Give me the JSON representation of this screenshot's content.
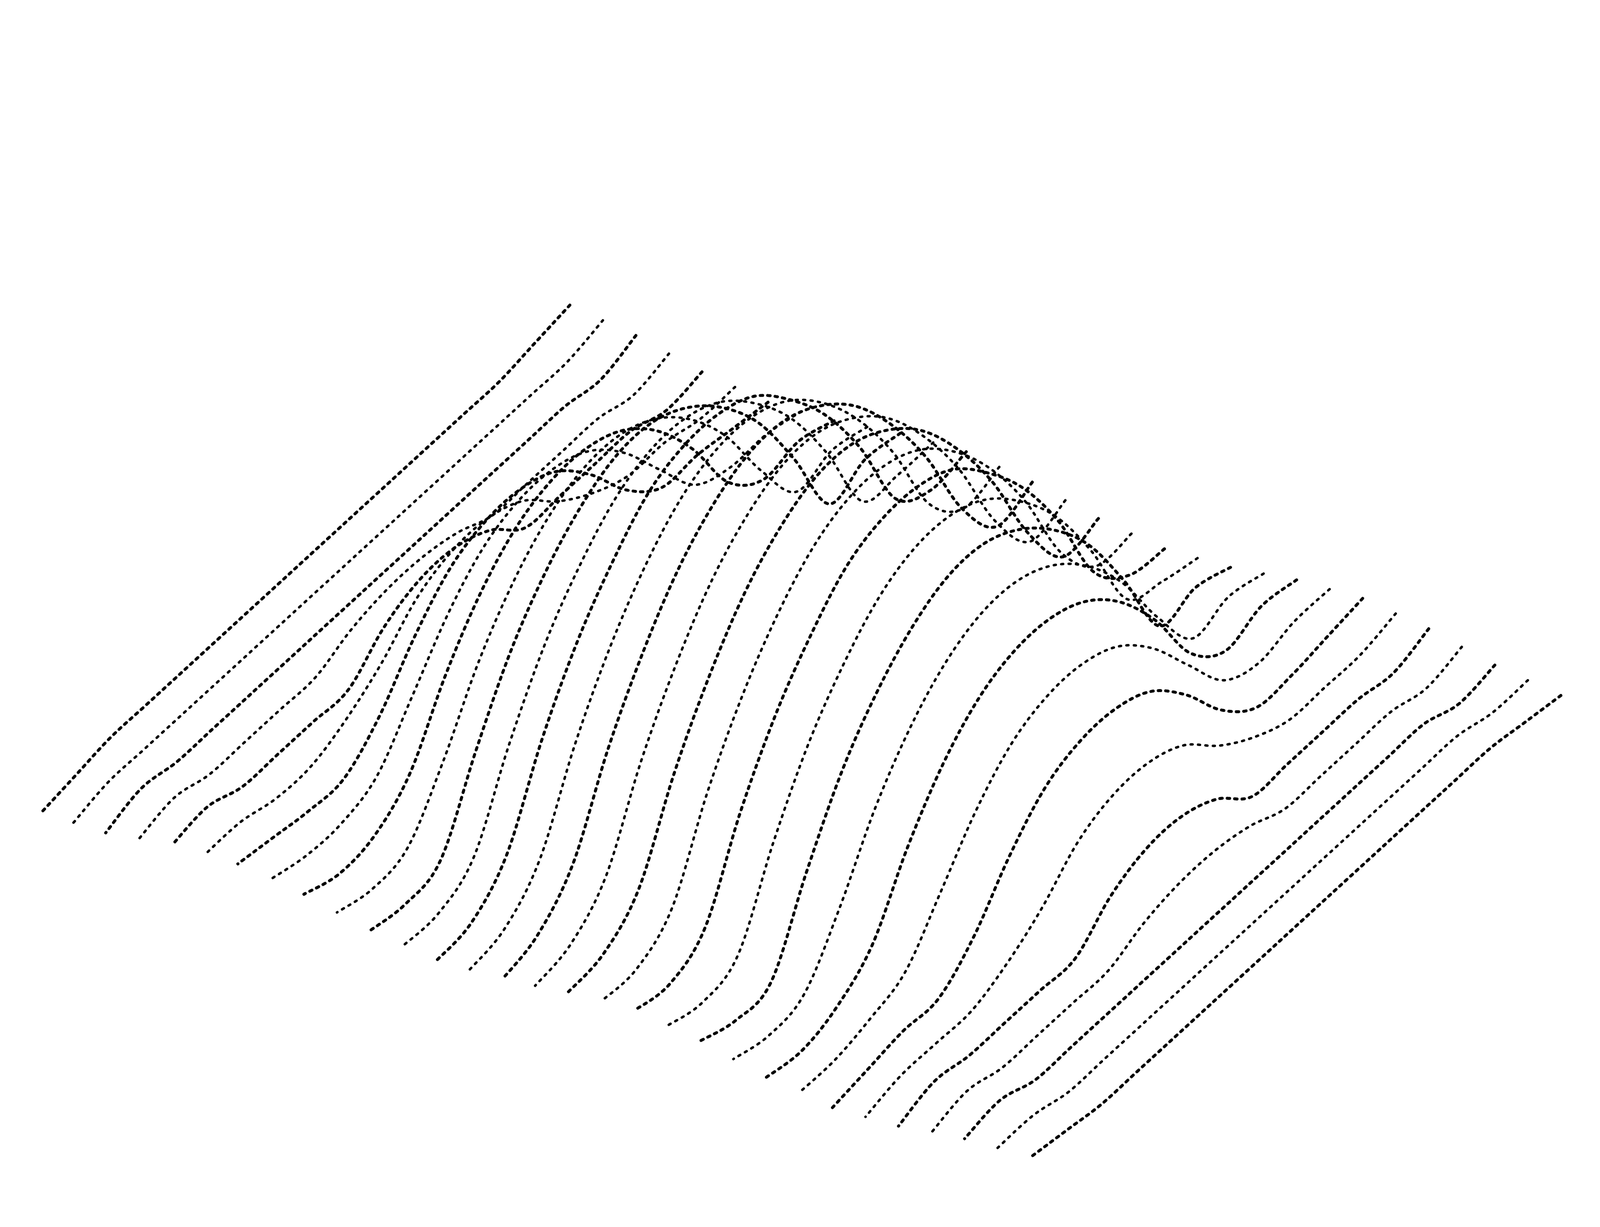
{
  "chart_data": {
    "type": "surface",
    "tick_labels": false,
    "zlim": [
      -1,
      10
    ],
    "z": [
      [
        0.4,
        0.2,
        -0.2,
        -0.4,
        -0.2,
        0.2,
        0.4,
        0.2,
        -0.2,
        -0.4,
        -0.2,
        0.2,
        0.4,
        0.2,
        -0.2,
        -0.4
      ],
      [
        0.2,
        -0.2,
        -0.4,
        -0.2,
        0.2,
        0.4,
        0.2,
        -0.2,
        -0.4,
        -0.2,
        0.2,
        0.4,
        0.2,
        -0.2,
        -0.4,
        -0.2
      ],
      [
        0,
        0,
        0,
        0,
        0,
        0,
        1.0,
        1.5,
        1.5,
        1.0,
        0,
        0,
        0,
        0,
        0,
        0
      ],
      [
        0,
        0,
        0,
        0,
        1.0,
        2.6,
        3.8,
        4.3,
        4.3,
        3.8,
        2.6,
        1.0,
        0,
        0,
        0,
        0
      ],
      [
        0,
        0,
        0,
        1.0,
        3.2,
        4.9,
        6.0,
        6.5,
        6.5,
        6.0,
        4.9,
        3.2,
        1.0,
        0,
        0,
        0
      ],
      [
        0,
        0,
        0,
        2.6,
        4.9,
        6.5,
        7.6,
        8.2,
        8.2,
        7.6,
        6.5,
        4.9,
        2.6,
        0,
        0,
        0
      ],
      [
        0,
        0,
        1.0,
        3.8,
        6.0,
        7.6,
        8.8,
        9.3,
        9.3,
        8.8,
        7.6,
        6.0,
        3.8,
        1.0,
        0,
        0
      ],
      [
        0,
        0,
        1.5,
        4.3,
        6.5,
        8.2,
        9.3,
        9.9,
        9.9,
        9.3,
        8.2,
        6.5,
        4.3,
        1.5,
        0,
        0
      ],
      [
        0,
        0,
        1.5,
        4.3,
        6.5,
        8.2,
        9.3,
        9.9,
        9.9,
        9.3,
        8.2,
        6.5,
        4.3,
        1.5,
        0,
        0
      ],
      [
        0,
        0,
        1.0,
        3.8,
        6.0,
        7.6,
        8.8,
        9.3,
        9.3,
        8.8,
        7.6,
        6.0,
        3.8,
        1.0,
        0,
        0
      ],
      [
        0,
        0,
        0,
        2.6,
        4.9,
        6.5,
        7.6,
        8.2,
        8.2,
        7.6,
        6.5,
        4.9,
        2.6,
        0,
        0,
        0
      ],
      [
        0,
        0,
        0,
        1.0,
        3.2,
        4.9,
        6.0,
        6.5,
        6.5,
        6.0,
        4.9,
        3.2,
        1.0,
        0,
        0,
        0
      ],
      [
        0,
        0,
        0,
        0,
        1.0,
        2.6,
        3.8,
        4.3,
        4.3,
        3.8,
        2.6,
        1.0,
        0,
        0,
        0,
        0
      ],
      [
        0,
        0,
        0,
        0,
        0,
        0,
        1.0,
        1.5,
        1.5,
        1.0,
        0,
        0,
        0,
        0,
        0,
        0
      ],
      [
        -0.2,
        0.2,
        0.4,
        0.2,
        -0.2,
        -0.4,
        -0.2,
        0.2,
        0.4,
        0.2,
        -0.2,
        -0.4,
        -0.2,
        0.2,
        0.4,
        0.2
      ],
      [
        -0.4,
        -0.2,
        0.2,
        0.4,
        0.2,
        -0.2,
        -0.4,
        -0.2,
        0.2,
        0.4,
        0.2,
        -0.2,
        -0.4,
        -0.2,
        0.2,
        0.4
      ]
    ]
  }
}
